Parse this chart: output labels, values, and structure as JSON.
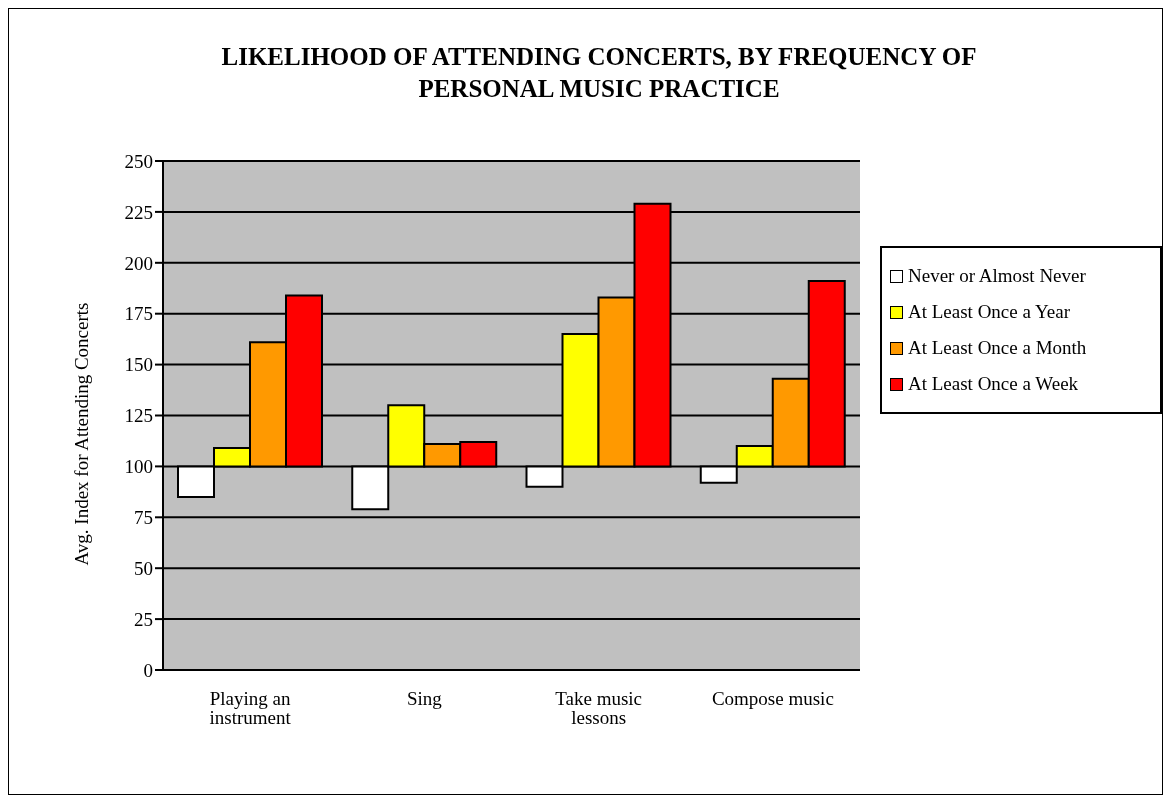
{
  "chart_data": {
    "type": "bar",
    "title": "LIKELIHOOD OF ATTENDING CONCERTS, BY FREQUENCY OF PERSONAL MUSIC PRACTICE",
    "ylabel": "Avg. Index for Attending Concerts",
    "categories": [
      "Playing an instrument",
      "Sing",
      "Take music lessons",
      "Compose music"
    ],
    "series": [
      {
        "name": "Never or Almost Never",
        "color": "#ffffff",
        "base": [
          100,
          100,
          100,
          100
        ],
        "values": [
          -15,
          -21,
          -10,
          -8
        ]
      },
      {
        "name": "At Least Once a Year",
        "color": "#ffff00",
        "base": [
          100,
          100,
          100,
          100
        ],
        "values": [
          9,
          30,
          65,
          10
        ]
      },
      {
        "name": "At Least Once a Month",
        "color": "#ff9900",
        "base": [
          100,
          100,
          100,
          100
        ],
        "values": [
          61,
          11,
          83,
          43
        ]
      },
      {
        "name": "At Least Once a Week",
        "color": "#ff0000",
        "base": [
          100,
          100,
          100,
          100
        ],
        "values": [
          84,
          12,
          129,
          91
        ]
      }
    ],
    "ylim": [
      0,
      250
    ],
    "yticks": [
      0,
      25,
      50,
      75,
      100,
      125,
      150,
      175,
      200,
      225,
      250
    ],
    "grid": "y",
    "legend": "right"
  }
}
